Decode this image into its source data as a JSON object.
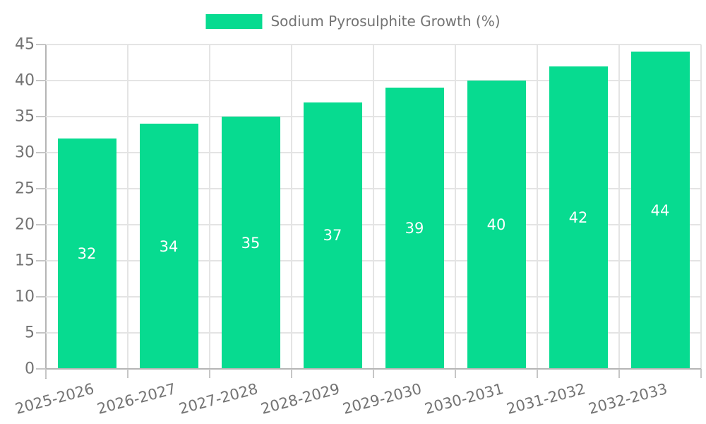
{
  "chart_data": {
    "type": "bar",
    "title": "",
    "legend_label": "Sodium Pyrosulphite Growth (%)",
    "legend_position": "top-center",
    "categories": [
      "2025-2026",
      "2026-2027",
      "2027-2028",
      "2028-2029",
      "2029-2030",
      "2030-2031",
      "2031-2032",
      "2032-2033"
    ],
    "values": [
      32,
      34,
      35,
      37,
      39,
      40,
      42,
      44
    ],
    "value_labels": [
      "32",
      "34",
      "35",
      "37",
      "39",
      "40",
      "42",
      "44"
    ],
    "value_label_position": "inside-center",
    "xlabel": "",
    "ylabel": "",
    "ylim": [
      0,
      45
    ],
    "yticks": [
      0,
      5,
      10,
      15,
      20,
      25,
      30,
      35,
      40,
      45
    ],
    "grid": "both",
    "x_label_rotation_deg": -15,
    "colors": {
      "bar": "#07db90",
      "value_label_text": "#ffffff",
      "axis_text": "#737373",
      "legend_text": "#737373",
      "gridline": "#e4e4e4",
      "axis_line": "#b5b5b5",
      "tick": "#c6c6c6",
      "background": "#ffffff"
    }
  }
}
